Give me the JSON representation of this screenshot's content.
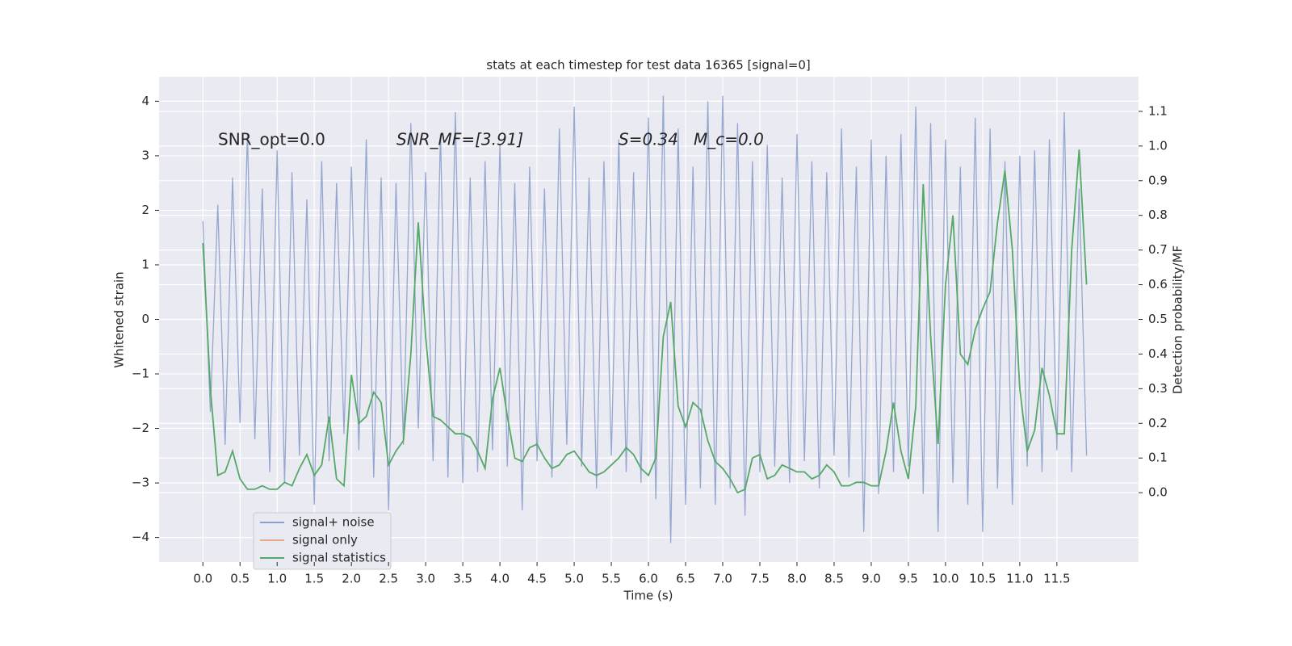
{
  "chart_data": {
    "type": "line",
    "title": "stats at each timestep for test data 16365 [signal=0]",
    "xlabel": "Time (s)",
    "ylabel": "Whitened strain",
    "y2label": "Detection probability/MF",
    "annotations": [
      "SNR_opt=0.0",
      "SNR_MF=[3.91]",
      "S=0.34",
      "M_c=0.0"
    ],
    "x": [
      0,
      0.1,
      0.2,
      0.3,
      0.4,
      0.5,
      0.6,
      0.7,
      0.8,
      0.9,
      1,
      1.1,
      1.2,
      1.3,
      1.4,
      1.5,
      1.6,
      1.7,
      1.8,
      1.9,
      2,
      2.1,
      2.2,
      2.3,
      2.4,
      2.5,
      2.6,
      2.7,
      2.8,
      2.9,
      3,
      3.1,
      3.2,
      3.3,
      3.4,
      3.5,
      3.6,
      3.7,
      3.8,
      3.9,
      4,
      4.1,
      4.2,
      4.3,
      4.4,
      4.5,
      4.6,
      4.7,
      4.8,
      4.9,
      5,
      5.1,
      5.2,
      5.3,
      5.4,
      5.5,
      5.6,
      5.7,
      5.8,
      5.9,
      6,
      6.1,
      6.2,
      6.3,
      6.4,
      6.5,
      6.6,
      6.7,
      6.8,
      6.9,
      7,
      7.1,
      7.2,
      7.3,
      7.4,
      7.5,
      7.6,
      7.7,
      7.8,
      7.9,
      8,
      8.1,
      8.2,
      8.3,
      8.4,
      8.5,
      8.6,
      8.7,
      8.8,
      8.9,
      9,
      9.1,
      9.2,
      9.3,
      9.4,
      9.5,
      9.6,
      9.7,
      9.8,
      9.9,
      10,
      10.1,
      10.2,
      10.3,
      10.4,
      10.5,
      10.6,
      10.7,
      10.8,
      10.9,
      11,
      11.1,
      11.2,
      11.3,
      11.4,
      11.5,
      11.6,
      11.7,
      11.8,
      11.9
    ],
    "series": [
      {
        "name": "signal+ noise",
        "color": "#8da0cb",
        "values": [
          1.8,
          -1.7,
          2.1,
          -2.3,
          2.6,
          -1.9,
          3.4,
          -2.2,
          2.4,
          -2.8,
          3.1,
          -3.0,
          2.7,
          -2.5,
          2.2,
          -3.4,
          2.9,
          -2.6,
          2.5,
          -2.1,
          2.8,
          -2.4,
          3.3,
          -2.9,
          2.6,
          -3.5,
          2.5,
          -2.3,
          3.6,
          -2.0,
          2.7,
          -2.6,
          3.4,
          -2.9,
          3.8,
          -3.0,
          2.6,
          -2.8,
          2.9,
          -2.4,
          3.2,
          -2.7,
          2.5,
          -3.5,
          2.8,
          -2.6,
          2.4,
          -2.9,
          3.5,
          -2.3,
          3.9,
          -2.7,
          2.6,
          -3.1,
          2.9,
          -2.5,
          3.3,
          -2.8,
          2.7,
          -3.0,
          3.7,
          -3.3,
          4.1,
          -4.1,
          3.5,
          -3.4,
          2.8,
          -3.1,
          4.0,
          -3.4,
          4.1,
          -3.1,
          3.6,
          -3.6,
          2.9,
          -2.8,
          3.2,
          -2.7,
          2.6,
          -3.0,
          3.4,
          -2.6,
          2.9,
          -3.1,
          2.7,
          -2.5,
          3.5,
          -2.9,
          2.8,
          -3.9,
          3.3,
          -3.2,
          3.0,
          -2.8,
          3.4,
          -2.7,
          3.9,
          -3.2,
          3.6,
          -3.9,
          3.3,
          -3.0,
          2.8,
          -3.4,
          3.7,
          -3.9,
          3.5,
          -3.1,
          2.9,
          -3.4,
          3.0,
          -2.7,
          3.1,
          -2.8,
          3.3,
          -2.4,
          3.8,
          -2.8,
          2.4,
          -2.5
        ]
      },
      {
        "name": "signal only",
        "color": "#e8a88a",
        "values": [
          null,
          null,
          null,
          null,
          null,
          null,
          null,
          null,
          null,
          null,
          null,
          null,
          null,
          null,
          null,
          null,
          null,
          null,
          null,
          null,
          null,
          null,
          null,
          null,
          null,
          null,
          null,
          null,
          null,
          null,
          null,
          null,
          null,
          null,
          null,
          null,
          null,
          null,
          null,
          null,
          null,
          null,
          null,
          null,
          null,
          null,
          null,
          null,
          null,
          null,
          null,
          null,
          null,
          null,
          null,
          null,
          null,
          null,
          null,
          null,
          null,
          null,
          null,
          null,
          null,
          null,
          null,
          null,
          null,
          null,
          null,
          null,
          null,
          null,
          null,
          null,
          null,
          null,
          null,
          null,
          null,
          null,
          null,
          null,
          null,
          null,
          null,
          null,
          null,
          null,
          null,
          null,
          null,
          null,
          null,
          null,
          null,
          null,
          null,
          null,
          null,
          null,
          null,
          null,
          null,
          null,
          null,
          null,
          null,
          null,
          null,
          null,
          null,
          null,
          null,
          null,
          null,
          null,
          null,
          null
        ]
      },
      {
        "name": "signal statistics",
        "color": "#55a868",
        "axis": "y2",
        "values": [
          0.72,
          0.3,
          0.05,
          0.06,
          0.12,
          0.04,
          0.01,
          0.01,
          0.02,
          0.01,
          0.01,
          0.03,
          0.02,
          0.07,
          0.11,
          0.05,
          0.08,
          0.22,
          0.04,
          0.02,
          0.34,
          0.2,
          0.22,
          0.29,
          0.26,
          0.08,
          0.12,
          0.15,
          0.4,
          0.78,
          0.45,
          0.22,
          0.21,
          0.19,
          0.17,
          0.17,
          0.16,
          0.12,
          0.07,
          0.27,
          0.36,
          0.22,
          0.1,
          0.09,
          0.13,
          0.14,
          0.1,
          0.07,
          0.08,
          0.11,
          0.12,
          0.09,
          0.06,
          0.05,
          0.06,
          0.08,
          0.1,
          0.13,
          0.11,
          0.07,
          0.05,
          0.1,
          0.45,
          0.55,
          0.25,
          0.19,
          0.26,
          0.24,
          0.15,
          0.09,
          0.07,
          0.04,
          0.0,
          0.01,
          0.1,
          0.11,
          0.04,
          0.05,
          0.08,
          0.07,
          0.06,
          0.06,
          0.04,
          0.05,
          0.08,
          0.06,
          0.02,
          0.02,
          0.03,
          0.03,
          0.02,
          0.02,
          0.12,
          0.26,
          0.12,
          0.04,
          0.25,
          0.89,
          0.45,
          0.14,
          0.6,
          0.8,
          0.4,
          0.37,
          0.47,
          0.53,
          0.58,
          0.78,
          0.93,
          0.7,
          0.3,
          0.12,
          0.18,
          0.36,
          0.28,
          0.17,
          0.17,
          0.7,
          0.99,
          0.6
        ]
      }
    ],
    "xlim": [
      -0.59,
      12.6
    ],
    "xticks": [
      {
        "value": 0,
        "label": "0.0"
      },
      0.5,
      {
        "value": 1,
        "label": "1.0"
      },
      1.5,
      {
        "value": 2,
        "label": "2.0"
      },
      2.5,
      {
        "value": 3,
        "label": "3.0"
      },
      3.5,
      {
        "value": 4,
        "label": "4.0"
      },
      4.5,
      {
        "value": 5,
        "label": "5.0"
      },
      5.5,
      {
        "value": 6,
        "label": "6.0"
      },
      6.5,
      {
        "value": 7,
        "label": "7.0"
      },
      7.5,
      {
        "value": 8,
        "label": "8.0"
      },
      8.5,
      {
        "value": 9,
        "label": "9.0"
      },
      9.5,
      {
        "value": 10,
        "label": "10.0"
      },
      10.5,
      {
        "value": 11,
        "label": "11.0"
      },
      11.5
    ],
    "ylim": [
      -4.45,
      4.45
    ],
    "yticks": [
      {
        "value": -4,
        "label": "−4"
      },
      {
        "value": -3,
        "label": "−3"
      },
      {
        "value": -2,
        "label": "−2"
      },
      {
        "value": -1,
        "label": "−1"
      },
      0,
      1,
      2,
      3,
      4
    ],
    "y2lim": [
      -0.2,
      1.2
    ],
    "y2ticks": [
      {
        "value": 0,
        "label": "0.0"
      },
      0.1,
      0.2,
      0.3,
      0.4,
      0.5,
      0.6,
      0.7,
      0.8,
      0.9,
      {
        "value": 1,
        "label": "1.0"
      },
      1.1
    ],
    "grid": true,
    "legend": "lower left"
  }
}
